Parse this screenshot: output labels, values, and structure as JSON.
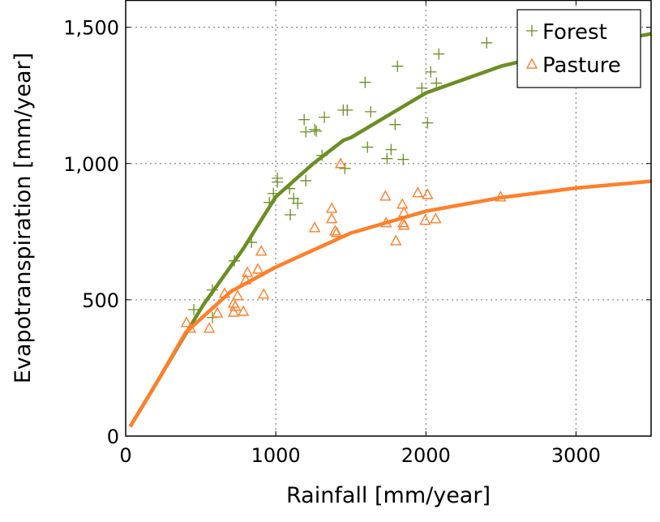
{
  "chart_data": {
    "type": "scatter",
    "xlabel": "Rainfall [mm/year]",
    "ylabel": "Evapotranspiration [mm/year]",
    "xlim": [
      0,
      3500
    ],
    "ylim": [
      0,
      1600
    ],
    "xticks": [
      0,
      1000,
      2000,
      3000
    ],
    "xtick_labels": [
      "0",
      "1000",
      "2000",
      "3000"
    ],
    "yticks": [
      0,
      500,
      1000,
      1500
    ],
    "ytick_labels": [
      "0",
      "500",
      "1,000",
      "1,500"
    ],
    "grid": true,
    "legend_position": "top-right",
    "series": [
      {
        "name": "Forest",
        "marker": "plus",
        "color": "#6b8e23",
        "points": [
          [
            454,
            464
          ],
          [
            578,
            435
          ],
          [
            578,
            536
          ],
          [
            724,
            643
          ],
          [
            838,
            711
          ],
          [
            957,
            857
          ],
          [
            984,
            890
          ],
          [
            1011,
            946
          ],
          [
            1011,
            932
          ],
          [
            1092,
            908
          ],
          [
            1119,
            872
          ],
          [
            1146,
            854
          ],
          [
            1097,
            812
          ],
          [
            1200,
            937
          ],
          [
            1308,
            1030
          ],
          [
            1324,
            1170
          ],
          [
            1189,
            1161
          ],
          [
            1200,
            1116
          ],
          [
            1270,
            1119
          ],
          [
            1259,
            1125
          ],
          [
            1449,
            1196
          ],
          [
            1476,
            1196
          ],
          [
            1460,
            982
          ],
          [
            1595,
            1298
          ],
          [
            1632,
            1190
          ],
          [
            1611,
            1060
          ],
          [
            1741,
            1018
          ],
          [
            1768,
            1051
          ],
          [
            1795,
            1143
          ],
          [
            1811,
            1357
          ],
          [
            1849,
            1015
          ],
          [
            1973,
            1277
          ],
          [
            2011,
            1149
          ],
          [
            2032,
            1336
          ],
          [
            2070,
            1295
          ],
          [
            2086,
            1402
          ],
          [
            2405,
            1443
          ]
        ],
        "fit": [
          [
            30,
            35
          ],
          [
            200,
            190
          ],
          [
            400,
            375
          ],
          [
            514,
            479
          ],
          [
            784,
            688
          ],
          [
            1000,
            878
          ],
          [
            1250,
            1000
          ],
          [
            1450,
            1085
          ],
          [
            1500,
            1095
          ],
          [
            2000,
            1259
          ],
          [
            2500,
            1357
          ],
          [
            3000,
            1423
          ],
          [
            3500,
            1476
          ]
        ]
      },
      {
        "name": "Pasture",
        "marker": "triangle",
        "color": "#ff7f2a",
        "points": [
          [
            405,
            417
          ],
          [
            432,
            396
          ],
          [
            557,
            396
          ],
          [
            611,
            452
          ],
          [
            659,
            524
          ],
          [
            719,
            488
          ],
          [
            730,
            476
          ],
          [
            746,
            515
          ],
          [
            719,
            455
          ],
          [
            784,
            458
          ],
          [
            800,
            574
          ],
          [
            811,
            601
          ],
          [
            881,
            613
          ],
          [
            903,
            679
          ],
          [
            919,
            521
          ],
          [
            1259,
            765
          ],
          [
            1373,
            836
          ],
          [
            1373,
            798
          ],
          [
            1395,
            753
          ],
          [
            1405,
            747
          ],
          [
            1432,
            1000
          ],
          [
            1730,
            881
          ],
          [
            1735,
            783
          ],
          [
            1800,
            717
          ],
          [
            1843,
            851
          ],
          [
            1854,
            821
          ],
          [
            1849,
            783
          ],
          [
            1854,
            774
          ],
          [
            1946,
            893
          ],
          [
            2011,
            887
          ],
          [
            1995,
            792
          ],
          [
            2065,
            798
          ],
          [
            2497,
            878
          ]
        ],
        "fit": [
          [
            30,
            35
          ],
          [
            200,
            190
          ],
          [
            400,
            380
          ],
          [
            700,
            530
          ],
          [
            1000,
            620
          ],
          [
            1500,
            745
          ],
          [
            2000,
            825
          ],
          [
            2500,
            875
          ],
          [
            3000,
            910
          ],
          [
            3500,
            935
          ]
        ]
      }
    ]
  }
}
